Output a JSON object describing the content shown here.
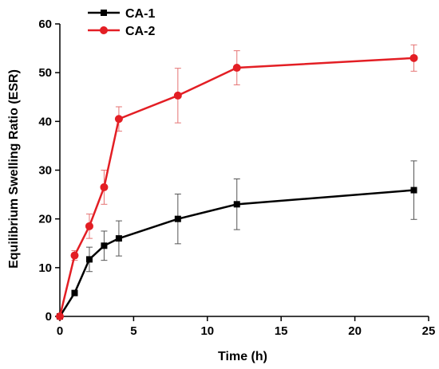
{
  "chart_data": {
    "type": "line",
    "title": "",
    "xlabel": "Time (h)",
    "ylabel": "Equilibrium Swelling Ratio (ESR)",
    "xlim": [
      0,
      25
    ],
    "ylim": [
      0,
      60
    ],
    "x_ticks": [
      0,
      5,
      10,
      15,
      20,
      25
    ],
    "y_ticks": [
      0,
      10,
      20,
      30,
      40,
      50,
      60
    ],
    "x_tick_labels": [
      "0",
      "5",
      "10",
      "15",
      "20",
      "25"
    ],
    "y_tick_labels": [
      "0",
      "10",
      "20",
      "30",
      "40",
      "50",
      "60"
    ],
    "grid": false,
    "legend_position": "top-left",
    "series": [
      {
        "name": "CA-1",
        "color": "#000000",
        "marker": "square",
        "x": [
          0,
          1,
          2,
          3,
          4,
          8,
          12,
          24
        ],
        "y": [
          0,
          4.8,
          11.7,
          14.5,
          16.0,
          20.0,
          23.0,
          25.9
        ],
        "err": [
          0,
          0.5,
          2.5,
          3.0,
          3.6,
          5.1,
          5.2,
          6.0
        ]
      },
      {
        "name": "CA-2",
        "color": "#e31e24",
        "marker": "circle",
        "x": [
          0,
          1,
          2,
          3,
          4,
          8,
          12,
          24
        ],
        "y": [
          0,
          12.5,
          18.5,
          26.5,
          40.5,
          45.3,
          51.0,
          53.0
        ],
        "err": [
          0,
          1.0,
          2.5,
          3.5,
          2.5,
          5.6,
          3.5,
          2.7
        ]
      }
    ]
  }
}
